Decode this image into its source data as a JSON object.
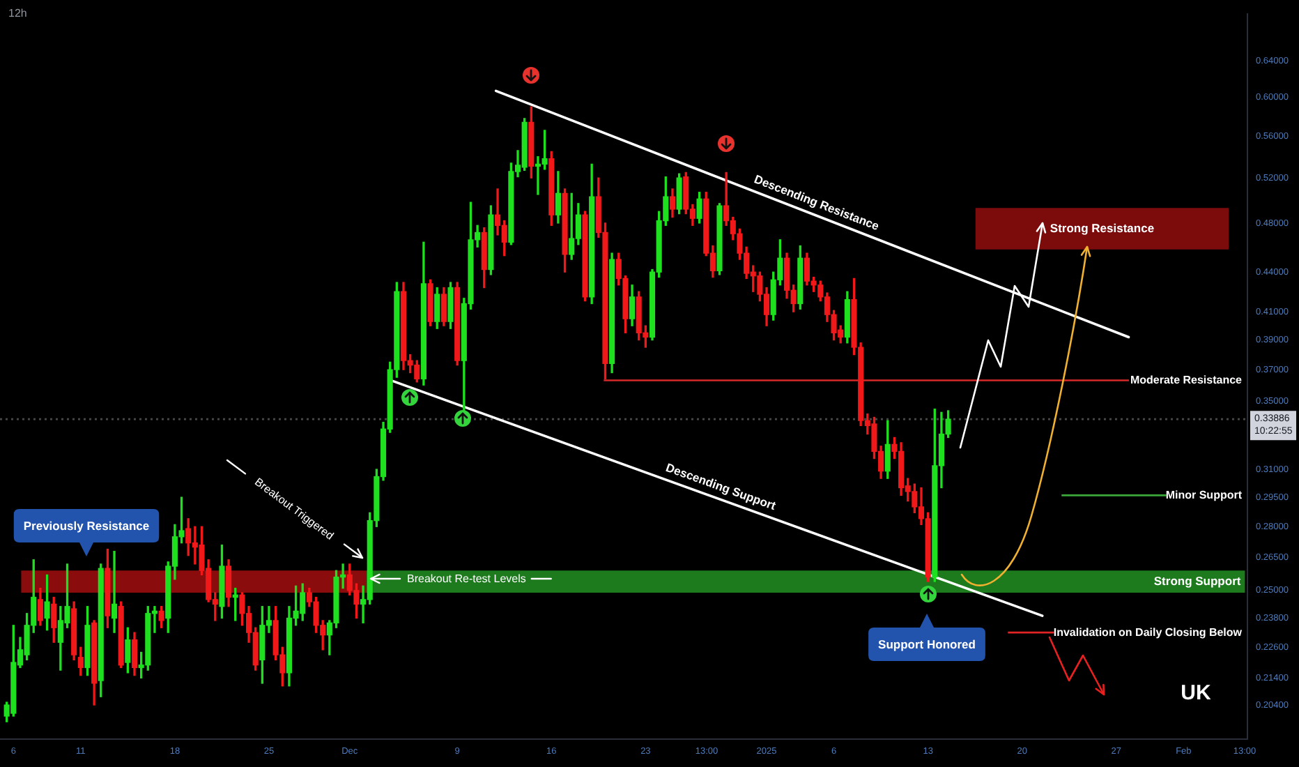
{
  "chart_data": {
    "type": "candlestick",
    "title": "12h",
    "x": [
      "2024-11-05T12:00",
      "2024-11-06T00:00",
      "2024-11-06T12:00",
      "2024-11-07T00:00",
      "2024-11-07T12:00",
      "2024-11-08T00:00",
      "2024-11-08T12:00",
      "2024-11-09T00:00",
      "2024-11-09T12:00",
      "2024-11-10T00:00",
      "2024-11-10T12:00",
      "2024-11-11T00:00",
      "2024-11-11T12:00",
      "2024-11-12T00:00",
      "2024-11-12T12:00",
      "2024-11-13T00:00",
      "2024-11-13T12:00",
      "2024-11-14T00:00",
      "2024-11-14T12:00",
      "2024-11-15T00:00",
      "2024-11-15T12:00",
      "2024-11-16T00:00",
      "2024-11-16T12:00",
      "2024-11-17T00:00",
      "2024-11-17T12:00",
      "2024-11-18T00:00",
      "2024-11-18T12:00",
      "2024-11-19T00:00",
      "2024-11-19T12:00",
      "2024-11-20T00:00",
      "2024-11-20T12:00",
      "2024-11-21T00:00",
      "2024-11-21T12:00",
      "2024-11-22T00:00",
      "2024-11-22T12:00",
      "2024-11-23T00:00",
      "2024-11-23T12:00",
      "2024-11-24T00:00",
      "2024-11-24T12:00",
      "2024-11-25T00:00",
      "2024-11-25T12:00",
      "2024-11-26T00:00",
      "2024-11-26T12:00",
      "2024-11-27T00:00",
      "2024-11-27T12:00",
      "2024-11-28T00:00",
      "2024-11-28T12:00",
      "2024-11-29T00:00",
      "2024-11-29T12:00",
      "2024-11-30T00:00",
      "2024-11-30T12:00",
      "2024-12-01T00:00",
      "2024-12-01T12:00",
      "2024-12-02T00:00",
      "2024-12-02T12:00",
      "2024-12-03T00:00",
      "2024-12-03T12:00",
      "2024-12-04T00:00",
      "2024-12-04T12:00",
      "2024-12-05T00:00",
      "2024-12-05T12:00",
      "2024-12-06T00:00",
      "2024-12-06T12:00",
      "2024-12-07T00:00",
      "2024-12-07T12:00",
      "2024-12-08T00:00",
      "2024-12-08T12:00",
      "2024-12-09T00:00",
      "2024-12-09T12:00",
      "2024-12-10T00:00",
      "2024-12-10T12:00",
      "2024-12-11T00:00",
      "2024-12-11T12:00",
      "2024-12-12T00:00",
      "2024-12-12T12:00",
      "2024-12-13T00:00",
      "2024-12-13T12:00",
      "2024-12-14T00:00",
      "2024-12-14T12:00",
      "2024-12-15T00:00",
      "2024-12-15T12:00",
      "2024-12-16T00:00",
      "2024-12-16T12:00",
      "2024-12-17T00:00",
      "2024-12-17T12:00",
      "2024-12-18T00:00",
      "2024-12-18T12:00",
      "2024-12-19T00:00",
      "2024-12-19T12:00",
      "2024-12-20T00:00",
      "2024-12-20T12:00",
      "2024-12-21T00:00",
      "2024-12-21T12:00",
      "2024-12-22T00:00",
      "2024-12-22T12:00",
      "2024-12-23T00:00",
      "2024-12-23T12:00",
      "2024-12-24T00:00",
      "2024-12-24T12:00",
      "2024-12-25T00:00",
      "2024-12-25T12:00",
      "2024-12-26T00:00",
      "2024-12-26T12:00",
      "2024-12-27T00:00",
      "2024-12-27T12:00",
      "2024-12-28T00:00",
      "2024-12-28T12:00",
      "2024-12-29T00:00",
      "2024-12-29T12:00",
      "2024-12-30T00:00",
      "2024-12-30T12:00",
      "2024-12-31T00:00",
      "2024-12-31T12:00",
      "2025-01-01T00:00",
      "2025-01-01T12:00",
      "2025-01-02T00:00",
      "2025-01-02T12:00",
      "2025-01-03T00:00",
      "2025-01-03T12:00",
      "2025-01-04T00:00",
      "2025-01-04T12:00",
      "2025-01-05T00:00",
      "2025-01-05T12:00",
      "2025-01-06T00:00",
      "2025-01-06T12:00",
      "2025-01-07T00:00",
      "2025-01-07T12:00",
      "2025-01-08T00:00",
      "2025-01-08T12:00",
      "2025-01-09T00:00",
      "2025-01-09T12:00",
      "2025-01-10T00:00",
      "2025-01-10T12:00",
      "2025-01-11T00:00",
      "2025-01-11T12:00",
      "2025-01-12T00:00",
      "2025-01-12T12:00",
      "2025-01-13T00:00",
      "2025-01-13T12:00",
      "2025-01-14T00:00",
      "2025-01-14T12:00"
    ],
    "ohlc": [
      [
        0.2,
        0.205,
        0.198,
        0.204
      ],
      [
        0.201,
        0.235,
        0.2,
        0.22
      ],
      [
        0.219,
        0.23,
        0.218,
        0.225
      ],
      [
        0.223,
        0.24,
        0.221,
        0.235
      ],
      [
        0.235,
        0.264,
        0.232,
        0.247
      ],
      [
        0.246,
        0.251,
        0.235,
        0.237
      ],
      [
        0.238,
        0.257,
        0.233,
        0.245
      ],
      [
        0.244,
        0.247,
        0.228,
        0.234
      ],
      [
        0.228,
        0.243,
        0.217,
        0.237
      ],
      [
        0.236,
        0.262,
        0.234,
        0.243
      ],
      [
        0.242,
        0.245,
        0.221,
        0.223
      ],
      [
        0.222,
        0.226,
        0.215,
        0.218
      ],
      [
        0.218,
        0.243,
        0.215,
        0.235
      ],
      [
        0.236,
        0.237,
        0.204,
        0.212
      ],
      [
        0.213,
        0.262,
        0.207,
        0.26
      ],
      [
        0.26,
        0.269,
        0.234,
        0.239
      ],
      [
        0.238,
        0.268,
        0.232,
        0.244
      ],
      [
        0.243,
        0.245,
        0.218,
        0.219
      ],
      [
        0.22,
        0.234,
        0.216,
        0.229
      ],
      [
        0.229,
        0.232,
        0.215,
        0.218
      ],
      [
        0.218,
        0.224,
        0.214,
        0.219
      ],
      [
        0.219,
        0.243,
        0.217,
        0.24
      ],
      [
        0.24,
        0.243,
        0.232,
        0.241
      ],
      [
        0.241,
        0.243,
        0.234,
        0.237
      ],
      [
        0.238,
        0.263,
        0.232,
        0.261
      ],
      [
        0.261,
        0.281,
        0.255,
        0.275
      ],
      [
        0.275,
        0.295,
        0.272,
        0.278
      ],
      [
        0.279,
        0.284,
        0.266,
        0.272
      ],
      [
        0.272,
        0.28,
        0.262,
        0.27
      ],
      [
        0.271,
        0.28,
        0.257,
        0.259
      ],
      [
        0.26,
        0.264,
        0.245,
        0.246
      ],
      [
        0.246,
        0.249,
        0.237,
        0.244
      ],
      [
        0.243,
        0.271,
        0.238,
        0.261
      ],
      [
        0.261,
        0.264,
        0.243,
        0.247
      ],
      [
        0.247,
        0.251,
        0.237,
        0.248
      ],
      [
        0.248,
        0.249,
        0.235,
        0.24
      ],
      [
        0.24,
        0.243,
        0.228,
        0.232
      ],
      [
        0.232,
        0.234,
        0.217,
        0.219
      ],
      [
        0.221,
        0.243,
        0.212,
        0.235
      ],
      [
        0.235,
        0.243,
        0.232,
        0.237
      ],
      [
        0.237,
        0.243,
        0.221,
        0.223
      ],
      [
        0.223,
        0.226,
        0.211,
        0.216
      ],
      [
        0.216,
        0.243,
        0.211,
        0.238
      ],
      [
        0.238,
        0.252,
        0.235,
        0.241
      ],
      [
        0.24,
        0.253,
        0.237,
        0.249
      ],
      [
        0.249,
        0.251,
        0.243,
        0.245
      ],
      [
        0.245,
        0.247,
        0.232,
        0.235
      ],
      [
        0.235,
        0.237,
        0.225,
        0.231
      ],
      [
        0.231,
        0.237,
        0.223,
        0.236
      ],
      [
        0.236,
        0.259,
        0.234,
        0.256
      ],
      [
        0.256,
        0.262,
        0.251,
        0.257
      ],
      [
        0.257,
        0.262,
        0.248,
        0.25
      ],
      [
        0.25,
        0.253,
        0.238,
        0.244
      ],
      [
        0.244,
        0.252,
        0.236,
        0.246
      ],
      [
        0.246,
        0.287,
        0.244,
        0.283
      ],
      [
        0.283,
        0.31,
        0.28,
        0.306
      ],
      [
        0.306,
        0.337,
        0.304,
        0.333
      ],
      [
        0.333,
        0.375,
        0.331,
        0.37
      ],
      [
        0.37,
        0.432,
        0.365,
        0.425
      ],
      [
        0.425,
        0.432,
        0.37,
        0.376
      ],
      [
        0.376,
        0.38,
        0.368,
        0.373
      ],
      [
        0.373,
        0.376,
        0.362,
        0.364
      ],
      [
        0.364,
        0.464,
        0.36,
        0.431
      ],
      [
        0.431,
        0.434,
        0.4,
        0.403
      ],
      [
        0.403,
        0.428,
        0.398,
        0.423
      ],
      [
        0.423,
        0.428,
        0.4,
        0.403
      ],
      [
        0.403,
        0.432,
        0.398,
        0.428
      ],
      [
        0.428,
        0.432,
        0.373,
        0.376
      ],
      [
        0.376,
        0.42,
        0.344,
        0.416
      ],
      [
        0.416,
        0.498,
        0.412,
        0.466
      ],
      [
        0.466,
        0.478,
        0.46,
        0.472
      ],
      [
        0.472,
        0.476,
        0.428,
        0.442
      ],
      [
        0.442,
        0.495,
        0.438,
        0.487
      ],
      [
        0.487,
        0.51,
        0.47,
        0.478
      ],
      [
        0.478,
        0.482,
        0.453,
        0.464
      ],
      [
        0.464,
        0.534,
        0.462,
        0.526
      ],
      [
        0.526,
        0.546,
        0.521,
        0.532
      ],
      [
        0.53,
        0.578,
        0.527,
        0.574
      ],
      [
        0.574,
        0.59,
        0.52,
        0.531
      ],
      [
        0.531,
        0.54,
        0.505,
        0.533
      ],
      [
        0.533,
        0.566,
        0.528,
        0.538
      ],
      [
        0.538,
        0.545,
        0.478,
        0.487
      ],
      [
        0.487,
        0.526,
        0.48,
        0.506
      ],
      [
        0.506,
        0.51,
        0.44,
        0.454
      ],
      [
        0.454,
        0.506,
        0.45,
        0.467
      ],
      [
        0.467,
        0.497,
        0.462,
        0.487
      ],
      [
        0.487,
        0.49,
        0.418,
        0.421
      ],
      [
        0.421,
        0.533,
        0.416,
        0.503
      ],
      [
        0.503,
        0.52,
        0.468,
        0.472
      ],
      [
        0.472,
        0.48,
        0.364,
        0.374
      ],
      [
        0.374,
        0.455,
        0.368,
        0.45
      ],
      [
        0.45,
        0.455,
        0.43,
        0.435
      ],
      [
        0.435,
        0.437,
        0.395,
        0.405
      ],
      [
        0.405,
        0.43,
        0.4,
        0.421
      ],
      [
        0.421,
        0.425,
        0.39,
        0.395
      ],
      [
        0.395,
        0.4,
        0.385,
        0.392
      ],
      [
        0.392,
        0.442,
        0.39,
        0.44
      ],
      [
        0.44,
        0.49,
        0.436,
        0.482
      ],
      [
        0.482,
        0.521,
        0.478,
        0.503
      ],
      [
        0.503,
        0.51,
        0.485,
        0.492
      ],
      [
        0.492,
        0.524,
        0.488,
        0.52
      ],
      [
        0.521,
        0.525,
        0.488,
        0.492
      ],
      [
        0.492,
        0.496,
        0.478,
        0.484
      ],
      [
        0.484,
        0.507,
        0.48,
        0.501
      ],
      [
        0.501,
        0.507,
        0.453,
        0.455
      ],
      [
        0.455,
        0.461,
        0.436,
        0.441
      ],
      [
        0.441,
        0.497,
        0.438,
        0.495
      ],
      [
        0.495,
        0.525,
        0.478,
        0.482
      ],
      [
        0.482,
        0.485,
        0.466,
        0.471
      ],
      [
        0.471,
        0.475,
        0.45,
        0.455
      ],
      [
        0.455,
        0.46,
        0.435,
        0.439
      ],
      [
        0.44,
        0.445,
        0.425,
        0.437
      ],
      [
        0.437,
        0.44,
        0.418,
        0.423
      ],
      [
        0.423,
        0.428,
        0.4,
        0.408
      ],
      [
        0.408,
        0.44,
        0.404,
        0.434
      ],
      [
        0.434,
        0.466,
        0.43,
        0.451
      ],
      [
        0.451,
        0.455,
        0.42,
        0.426
      ],
      [
        0.426,
        0.43,
        0.41,
        0.416
      ],
      [
        0.416,
        0.461,
        0.412,
        0.451
      ],
      [
        0.451,
        0.455,
        0.43,
        0.433
      ],
      [
        0.433,
        0.436,
        0.425,
        0.43
      ],
      [
        0.43,
        0.433,
        0.418,
        0.421
      ],
      [
        0.421,
        0.424,
        0.403,
        0.408
      ],
      [
        0.408,
        0.411,
        0.39,
        0.395
      ],
      [
        0.397,
        0.4,
        0.388,
        0.392
      ],
      [
        0.392,
        0.425,
        0.388,
        0.419
      ],
      [
        0.419,
        0.435,
        0.38,
        0.385
      ],
      [
        0.385,
        0.388,
        0.335,
        0.338
      ],
      [
        0.338,
        0.342,
        0.33,
        0.335
      ],
      [
        0.336,
        0.34,
        0.316,
        0.32
      ],
      [
        0.32,
        0.323,
        0.305,
        0.309
      ],
      [
        0.309,
        0.338,
        0.305,
        0.324
      ],
      [
        0.324,
        0.328,
        0.316,
        0.32
      ],
      [
        0.32,
        0.325,
        0.296,
        0.3
      ],
      [
        0.301,
        0.305,
        0.293,
        0.298
      ],
      [
        0.298,
        0.302,
        0.287,
        0.29
      ],
      [
        0.29,
        0.3,
        0.281,
        0.284
      ],
      [
        0.284,
        0.287,
        0.254,
        0.256
      ],
      [
        0.256,
        0.345,
        0.254,
        0.312
      ],
      [
        0.312,
        0.343,
        0.3,
        0.33
      ],
      [
        0.33,
        0.344,
        0.328,
        0.33886
      ]
    ],
    "colors": [
      "#1fe01f",
      "#1fe01f",
      "#1fe01f",
      "#1fe01f",
      "#1fe01f",
      "#f01818",
      "#1fe01f",
      "#f01818",
      "#1fe01f",
      "#1fe01f",
      "#f01818",
      "#f01818",
      "#1fe01f",
      "#f01818",
      "#1fe01f",
      "#f01818",
      "#1fe01f",
      "#f01818",
      "#1fe01f",
      "#f01818",
      "#1fe01f",
      "#1fe01f",
      "#1fe01f",
      "#f01818",
      "#1fe01f",
      "#1fe01f",
      "#1fe01f",
      "#f01818",
      "#f01818",
      "#f01818",
      "#f01818",
      "#f01818",
      "#1fe01f",
      "#f01818",
      "#1fe01f",
      "#f01818",
      "#f01818",
      "#f01818",
      "#1fe01f",
      "#1fe01f",
      "#f01818",
      "#f01818",
      "#1fe01f",
      "#1fe01f",
      "#1fe01f",
      "#f01818",
      "#f01818",
      "#f01818",
      "#1fe01f",
      "#1fe01f",
      "#1fe01f",
      "#f01818",
      "#f01818",
      "#1fe01f",
      "#1fe01f",
      "#1fe01f",
      "#1fe01f",
      "#1fe01f",
      "#1fe01f",
      "#f01818",
      "#f01818",
      "#f01818",
      "#1fe01f",
      "#f01818",
      "#1fe01f",
      "#f01818",
      "#1fe01f",
      "#f01818",
      "#1fe01f",
      "#1fe01f",
      "#1fe01f",
      "#f01818",
      "#1fe01f",
      "#f01818",
      "#f01818",
      "#1fe01f",
      "#1fe01f",
      "#1fe01f",
      "#f01818",
      "#1fe01f",
      "#1fe01f",
      "#f01818",
      "#1fe01f",
      "#f01818",
      "#1fe01f",
      "#1fe01f",
      "#f01818",
      "#1fe01f",
      "#f01818",
      "#f01818",
      "#1fe01f",
      "#f01818",
      "#f01818",
      "#1fe01f",
      "#f01818",
      "#f01818",
      "#1fe01f",
      "#1fe01f",
      "#1fe01f",
      "#f01818",
      "#1fe01f",
      "#f01818",
      "#f01818",
      "#1fe01f",
      "#f01818",
      "#f01818",
      "#1fe01f",
      "#f01818",
      "#f01818",
      "#f01818",
      "#f01818",
      "#f01818",
      "#f01818",
      "#f01818",
      "#1fe01f",
      "#1fe01f",
      "#f01818",
      "#f01818",
      "#1fe01f",
      "#f01818",
      "#f01818",
      "#f01818",
      "#f01818",
      "#f01818",
      "#f01818",
      "#1fe01f",
      "#f01818",
      "#f01818",
      "#f01818",
      "#f01818",
      "#f01818",
      "#1fe01f",
      "#f01818",
      "#f01818",
      "#f01818",
      "#f01818",
      "#f01818",
      "#f01818",
      "#1fe01f",
      "#1fe01f",
      "#1fe01f"
    ],
    "series": [
      {
        "type": "line",
        "name": "Descending Resistance",
        "color": "#ffffff",
        "x": [
          "2024-12-11T21:00",
          "2025-01-27T22:00"
        ],
        "values": [
          0.607,
          0.392
        ]
      },
      {
        "type": "line",
        "name": "Descending Support",
        "color": "#ffffff",
        "x": [
          "2024-12-04T02:00",
          "2025-01-21T12:00"
        ],
        "values": [
          0.363,
          0.239
        ]
      }
    ],
    "xlim": [
      "2024-11-05T00:00",
      "2025-02-05T18:00"
    ],
    "xticks": [
      {
        "value": "2024-11-06",
        "label": "6"
      },
      {
        "value": "2024-11-11",
        "label": "11"
      },
      {
        "value": "2024-11-18",
        "label": "18"
      },
      {
        "value": "2024-11-25",
        "label": "25"
      },
      {
        "value": "2024-12-01",
        "label": "Dec"
      },
      {
        "value": "2024-12-09",
        "label": "9"
      },
      {
        "value": "2024-12-16",
        "label": "16"
      },
      {
        "value": "2024-12-23",
        "label": "23"
      },
      {
        "value": "2024-12-27T13:00",
        "label": "13:00"
      },
      {
        "value": "2025-01-01",
        "label": "2025"
      },
      {
        "value": "2025-01-06",
        "label": "6"
      },
      {
        "value": "2025-01-13",
        "label": "13"
      },
      {
        "value": "2025-01-20",
        "label": "20"
      },
      {
        "value": "2025-01-27",
        "label": "27"
      },
      {
        "value": "2025-02-01",
        "label": "Feb"
      },
      {
        "value": "2025-02-05T13:00",
        "label": "13:00"
      }
    ],
    "ylim": [
      0.192,
      0.696
    ],
    "log": true,
    "yticks": [
      {
        "value": 0.204,
        "label": "0.20400"
      },
      {
        "value": 0.214,
        "label": "0.21400"
      },
      {
        "value": 0.226,
        "label": "0.22600"
      },
      {
        "value": 0.238,
        "label": "0.23800"
      },
      {
        "value": 0.25,
        "label": "0.25000"
      },
      {
        "value": 0.265,
        "label": "0.26500"
      },
      {
        "value": 0.28,
        "label": "0.28000"
      },
      {
        "value": 0.295,
        "label": "0.29500"
      },
      {
        "value": 0.31,
        "label": "0.31000"
      },
      {
        "value": 0.35,
        "label": "0.35000"
      },
      {
        "value": 0.37,
        "label": "0.37000"
      },
      {
        "value": 0.39,
        "label": "0.39000"
      },
      {
        "value": 0.41,
        "label": "0.41000"
      },
      {
        "value": 0.44,
        "label": "0.44000"
      },
      {
        "value": 0.48,
        "label": "0.48000"
      },
      {
        "value": 0.52,
        "label": "0.52000"
      },
      {
        "value": 0.56,
        "label": "0.56000"
      },
      {
        "value": 0.6,
        "label": "0.60000"
      },
      {
        "value": 0.64,
        "label": "0.64000"
      }
    ],
    "ref_lines": [
      {
        "axis": "y",
        "value": 0.363,
        "label": "Moderate Resistance",
        "color": "#d42a2a"
      },
      {
        "axis": "y",
        "value": 0.296,
        "label": "Minor Support",
        "color": "#3aa83a"
      },
      {
        "axis": "y",
        "value": 0.232,
        "label": "Invalidation on Daily Closing Below",
        "color": "#e02424"
      },
      {
        "axis": "y",
        "value": 0.33886,
        "label": "0.33886",
        "color": "#4a4a4a",
        "line_style": "dotted"
      }
    ],
    "bands": [
      {
        "axis": "y",
        "from": 0.249,
        "to": 0.259,
        "color": "#8a0c0c"
      },
      {
        "axis": "y",
        "from": 0.249,
        "to": 0.259,
        "label": "Strong Support",
        "color": "#1d7a1d"
      },
      {
        "axis": "y",
        "from": 0.458,
        "to": 0.493,
        "label": "Strong Resistance",
        "color": "#7c0b0b"
      }
    ],
    "annotations": [
      "Previously Resistance",
      "Breakout Triggered",
      "Breakout Re-test Levels",
      "Support Honored",
      "UK",
      "10:22:55"
    ]
  }
}
